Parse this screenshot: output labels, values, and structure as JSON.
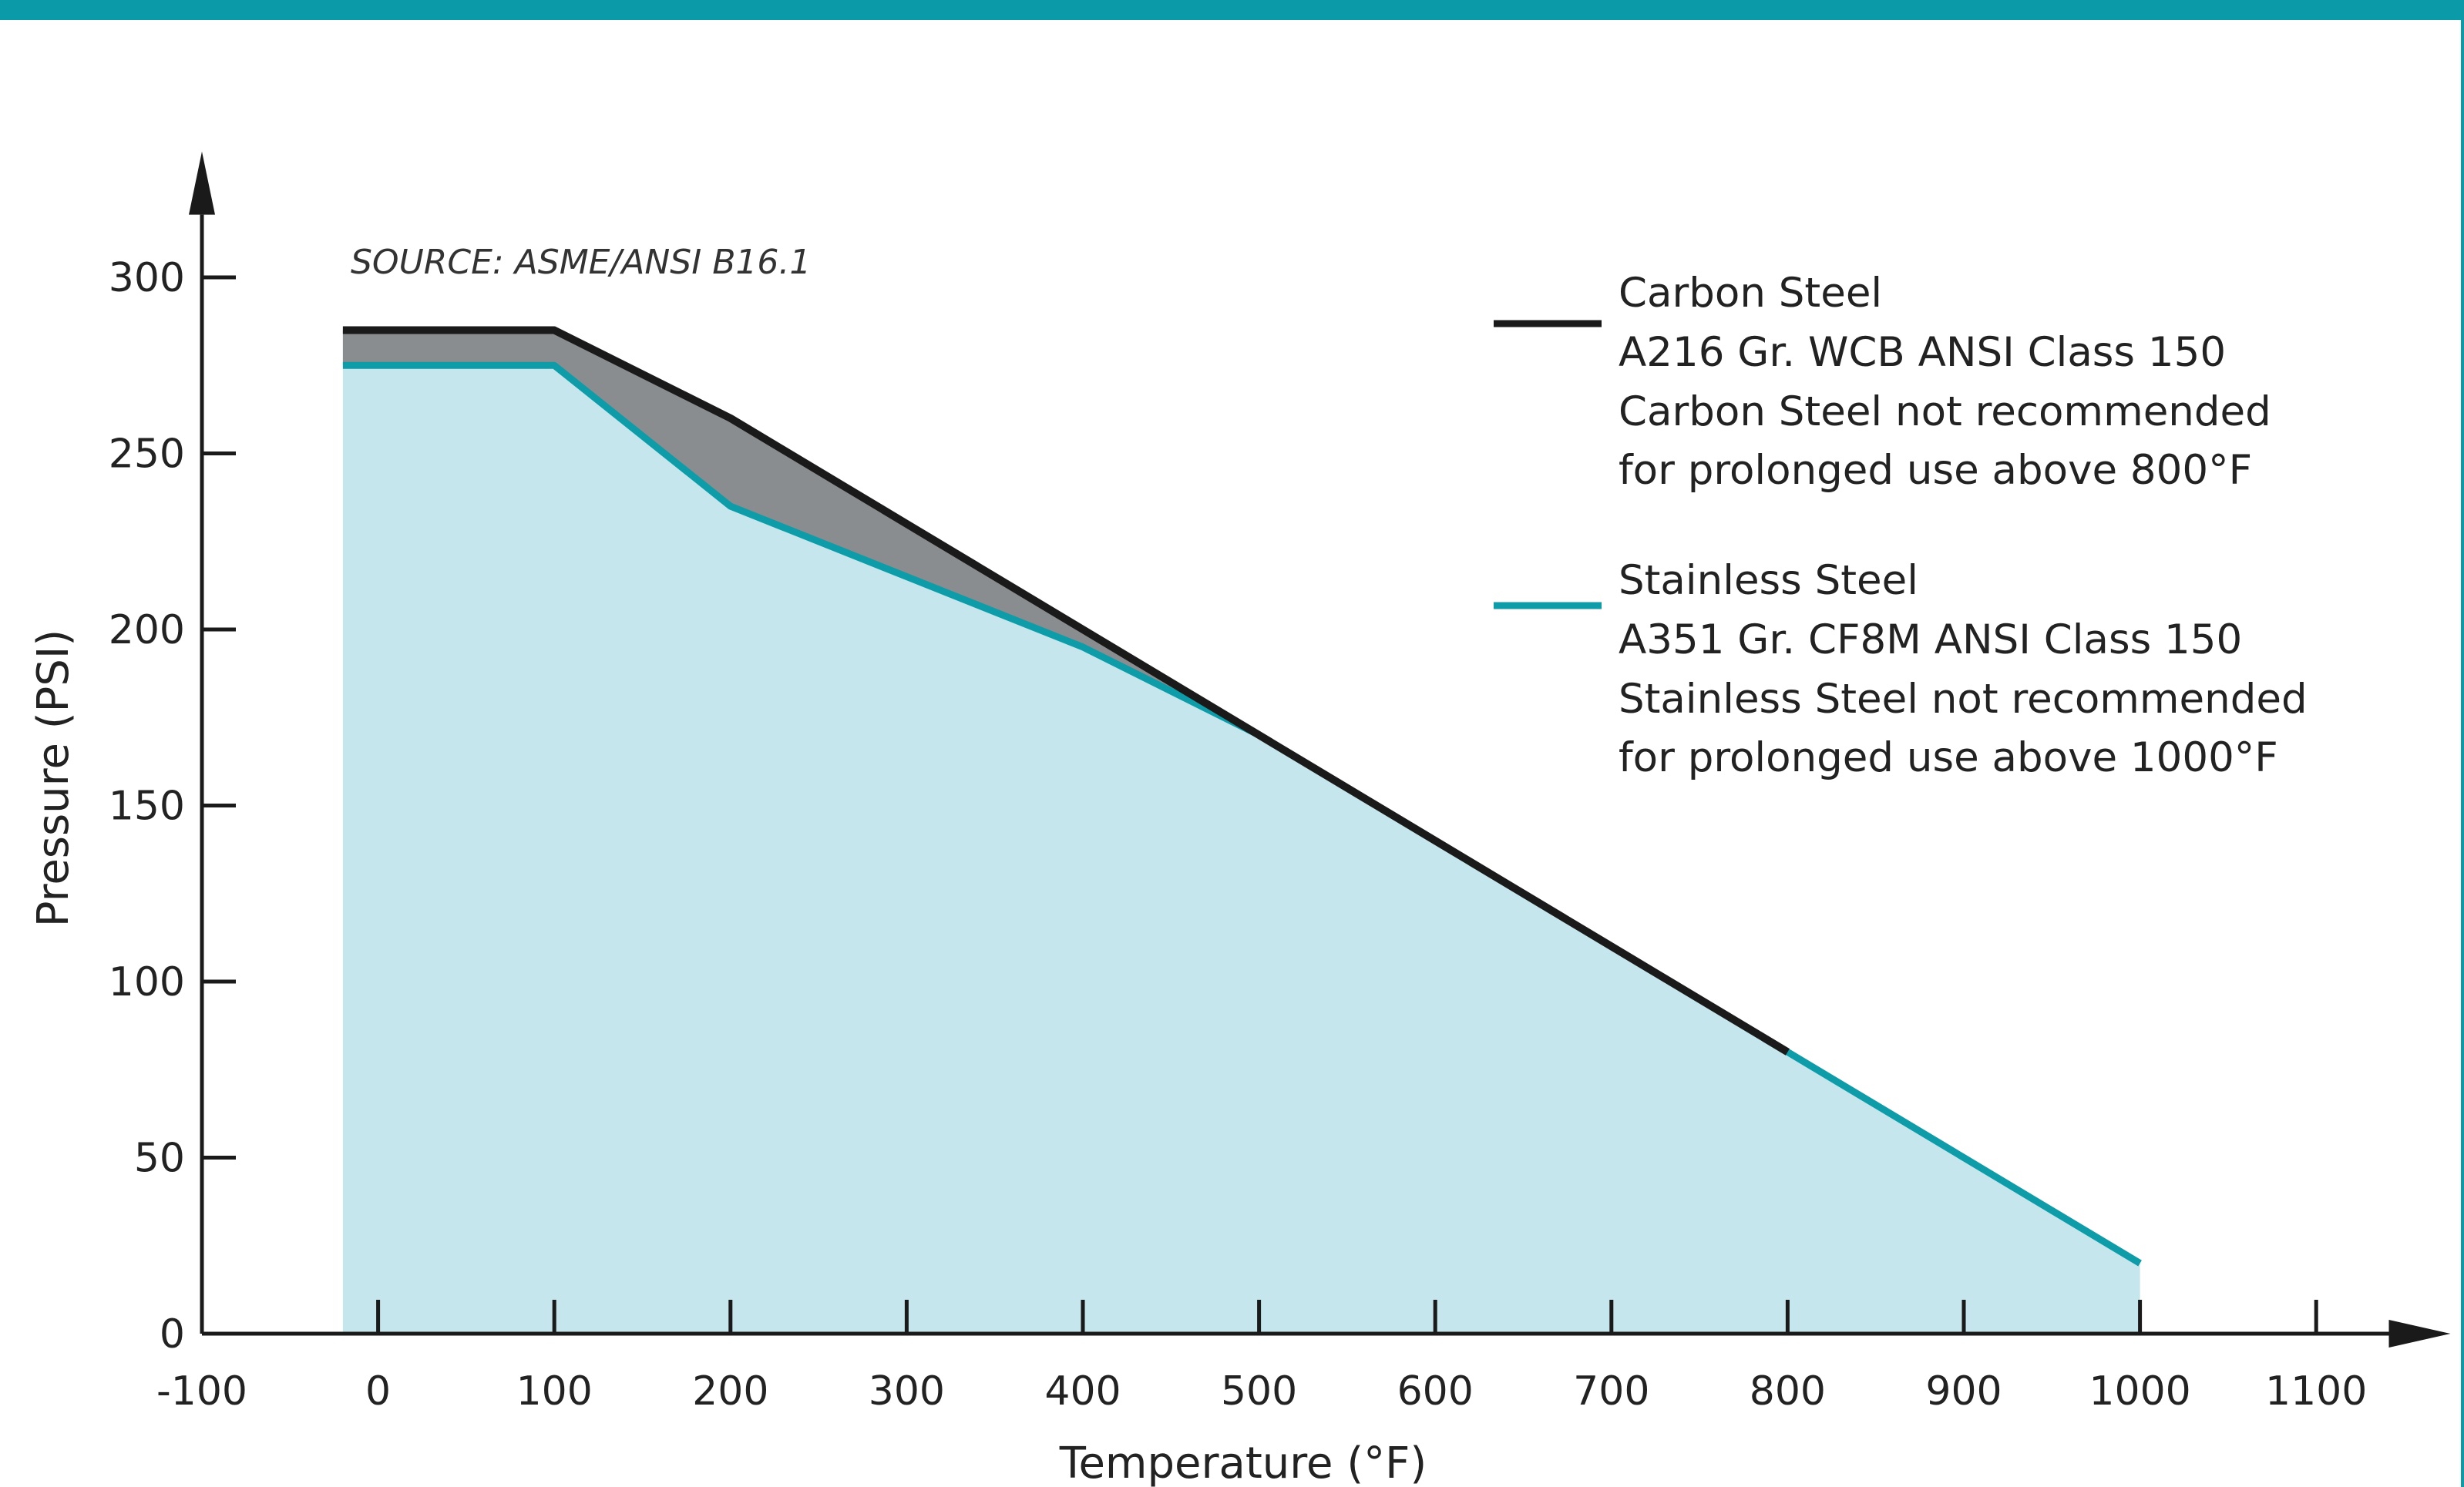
{
  "colors": {
    "accent": "#0a9aa8",
    "carbon_line": "#1a1a1a",
    "stainless_line": "#0e9ca8",
    "stainless_fill": "#c4e6ec",
    "carbon_fill": "#8a8d8f"
  },
  "chart_data": {
    "type": "area",
    "source_note": "SOURCE: ASME/ANSI B16.1",
    "xlabel": "Temperature (°F)",
    "ylabel": "Pressure (PSI)",
    "xlim": [
      -100,
      1150
    ],
    "ylim": [
      0,
      320
    ],
    "x_ticks": [
      -100,
      0,
      100,
      200,
      300,
      400,
      500,
      600,
      700,
      800,
      900,
      1000,
      1100
    ],
    "y_ticks": [
      0,
      50,
      100,
      150,
      200,
      250,
      300
    ],
    "series": [
      {
        "name": "Carbon Steel",
        "x": [
          -20,
          100,
          200,
          300,
          400,
          500,
          600,
          700,
          800
        ],
        "y": [
          285,
          285,
          260,
          230,
          200,
          170,
          140,
          110,
          80
        ]
      },
      {
        "name": "Stainless Steel",
        "x": [
          -20,
          100,
          200,
          300,
          400,
          500,
          600,
          700,
          800,
          900,
          1000
        ],
        "y": [
          275,
          275,
          235,
          215,
          195,
          170,
          140,
          110,
          80,
          50,
          20
        ]
      }
    ],
    "legend": [
      {
        "series": "Carbon Steel",
        "lines": [
          "Carbon Steel",
          "A216 Gr. WCB ANSI Class 150",
          "Carbon Steel not recommended",
          "for prolonged use above 800°F"
        ]
      },
      {
        "series": "Stainless Steel",
        "lines": [
          "Stainless Steel",
          "A351 Gr. CF8M ANSI Class 150",
          "Stainless Steel not recommended",
          "for prolonged use above 1000°F"
        ]
      }
    ]
  }
}
